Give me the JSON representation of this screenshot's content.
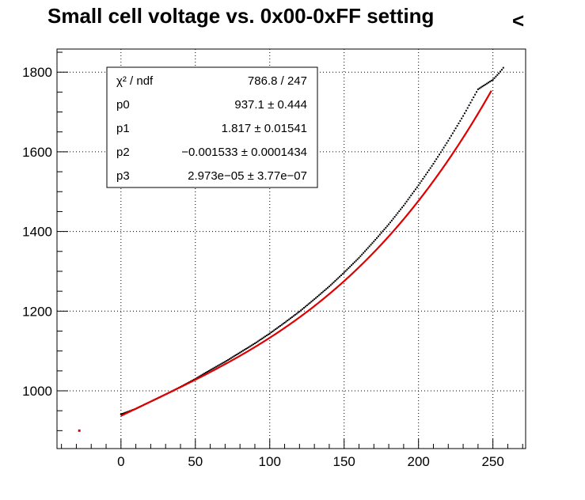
{
  "chart_data": {
    "type": "scatter",
    "title": "Small cell voltage vs. 0x00-0xFF setting",
    "title_suffix": "<",
    "xlabel": "",
    "ylabel": "",
    "xlim": [
      -43,
      272
    ],
    "ylim": [
      855,
      1858
    ],
    "x_ticks": [
      0,
      50,
      100,
      150,
      200,
      250
    ],
    "x_tick_labels": [
      "0",
      "50",
      "100",
      "150",
      "200",
      "250"
    ],
    "y_ticks": [
      1000,
      1200,
      1400,
      1600,
      1800
    ],
    "y_tick_labels": [
      "1000",
      "1200",
      "1400",
      "1600",
      "1800"
    ],
    "grid": true,
    "series": [
      {
        "color": "#000000",
        "marker": "dot",
        "points": [
          [
            0,
            941
          ],
          [
            10,
            955
          ],
          [
            20,
            973
          ],
          [
            30,
            991
          ],
          [
            40,
            1010
          ],
          [
            50,
            1030
          ],
          [
            60,
            1052
          ],
          [
            70,
            1073
          ],
          [
            80,
            1096
          ],
          [
            90,
            1119
          ],
          [
            100,
            1144
          ],
          [
            110,
            1171
          ],
          [
            120,
            1199
          ],
          [
            130,
            1230
          ],
          [
            140,
            1262
          ],
          [
            150,
            1297
          ],
          [
            160,
            1334
          ],
          [
            170,
            1375
          ],
          [
            180,
            1418
          ],
          [
            190,
            1465
          ],
          [
            200,
            1516
          ],
          [
            210,
            1570
          ],
          [
            220,
            1628
          ],
          [
            230,
            1690
          ],
          [
            240,
            1757
          ],
          [
            250,
            1781
          ],
          [
            252,
            1789
          ],
          [
            254,
            1797
          ],
          [
            256,
            1806
          ],
          [
            257,
            1811
          ]
        ]
      },
      {
        "color": "#e00000",
        "marker": "dot",
        "points": [
          [
            -28,
            900
          ]
        ]
      }
    ],
    "fit": {
      "color": "#e00000",
      "x_range": [
        0,
        249
      ],
      "params": [
        937.1,
        1.817,
        -0.001533,
        2.973e-05
      ]
    },
    "stats_box": {
      "position": "top-left",
      "rows": [
        {
          "label": "χ² / ndf",
          "value": "786.8 / 247"
        },
        {
          "label": "p0",
          "value": "937.1 ± 0.444"
        },
        {
          "label": "p1",
          "value": "1.817 ± 0.01541"
        },
        {
          "label": "p2",
          "value": "−0.001533 ± 0.0001434"
        },
        {
          "label": "p3",
          "value": "2.973e−05 ± 3.77e−07"
        }
      ]
    }
  }
}
